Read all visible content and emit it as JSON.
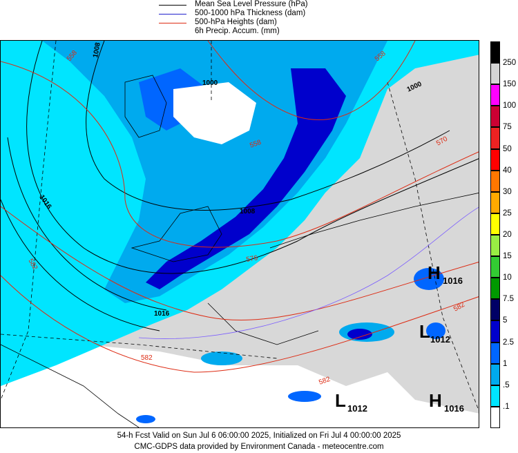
{
  "legend": [
    {
      "label": "Mean Sea Level Pressure (hPa)",
      "color": "#000000"
    },
    {
      "label": "500-1000 hPa Thickness (dam)",
      "color": "#1f1fcc"
    },
    {
      "label": "500-hPa Heights (dam)",
      "color": "#dd2a12"
    },
    {
      "label": "6h Precip. Accum. (mm)",
      "color": ""
    }
  ],
  "map": {
    "pressure_labels": [
      "1008",
      "1000",
      "1000",
      "1008",
      "1016",
      "1016",
      "1008"
    ],
    "height_labels": [
      "558",
      "558",
      "570",
      "558",
      "576",
      "582",
      "582",
      "582",
      "582"
    ],
    "highs": [
      {
        "letter": "H",
        "value": "1016"
      },
      {
        "letter": "H",
        "value": "1016"
      }
    ],
    "lows": [
      {
        "letter": "L",
        "value": "1012"
      },
      {
        "letter": "L",
        "value": "1012"
      }
    ]
  },
  "precip_scale": {
    "labels": [
      "250",
      "150",
      "100",
      "75",
      "50",
      "40",
      "30",
      "25",
      "20",
      "15",
      "10",
      "7.5",
      "5",
      "2.5",
      "1",
      ".5",
      ".1"
    ],
    "colors": [
      "#000000",
      "#d4d4d4",
      "#ff00ff",
      "#cc0033",
      "#ee2222",
      "#ff0000",
      "#ff7700",
      "#ffaa00",
      "#ffff00",
      "#99ee44",
      "#33cc33",
      "#009900",
      "#000066",
      "#0000cc",
      "#0066ff",
      "#00aaee",
      "#00e5ff",
      "#ffffff"
    ]
  },
  "footer": {
    "line1": "54-h Fcst Valid on Sun Jul  6 06:00:00 2025, Initialized on Fri Jul  4 00:00:00 2025",
    "line2": "CMC-GDPS data provided by Environment Canada - meteocentre.com"
  }
}
